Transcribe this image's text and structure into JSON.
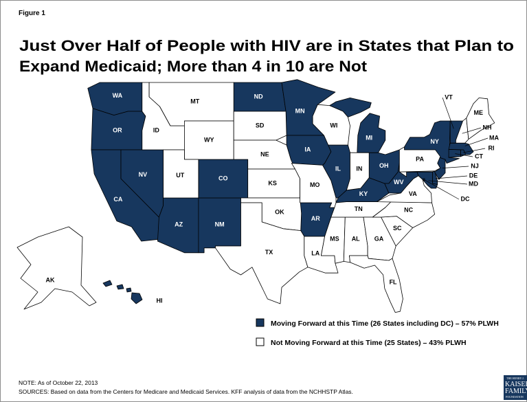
{
  "figure_label": "Figure 1",
  "title_lines": [
    "Just Over Half of People with HIV are in States that Plan to",
    "Expand Medicaid; More than 4 in 10 are Not"
  ],
  "legend": [
    {
      "label": "Moving Forward at this Time (26 States including DC) – 57% PLWH",
      "color": "#17375e",
      "states": [
        "WA",
        "OR",
        "CA",
        "NV",
        "AZ",
        "NM",
        "CO",
        "ND",
        "MN",
        "IA",
        "AR",
        "IL",
        "KY",
        "OH",
        "MI",
        "WV",
        "MD",
        "DC",
        "DE",
        "NJ",
        "NY",
        "CT",
        "RI",
        "MA",
        "VT",
        "HI"
      ]
    },
    {
      "label": "Not Moving Forward at this Time (25 States) – 43% PLWH",
      "color": "#ffffff",
      "states": [
        "AK",
        "ID",
        "MT",
        "WY",
        "UT",
        "SD",
        "NE",
        "KS",
        "OK",
        "TX",
        "MO",
        "LA",
        "WI",
        "IN",
        "MS",
        "AL",
        "TN",
        "GA",
        "FL",
        "SC",
        "NC",
        "VA",
        "PA",
        "NH",
        "ME"
      ]
    }
  ],
  "notes": [
    "NOTE: As of October 22, 2013",
    "SOURCES: Based on data from the Centers for Medicare and Medicaid Services.  KFF analysis of data from the NCHHSTP Atlas."
  ],
  "logo": [
    "THE HENRY J.",
    "KAISER",
    "FAMILY",
    "FOUNDATION"
  ]
}
